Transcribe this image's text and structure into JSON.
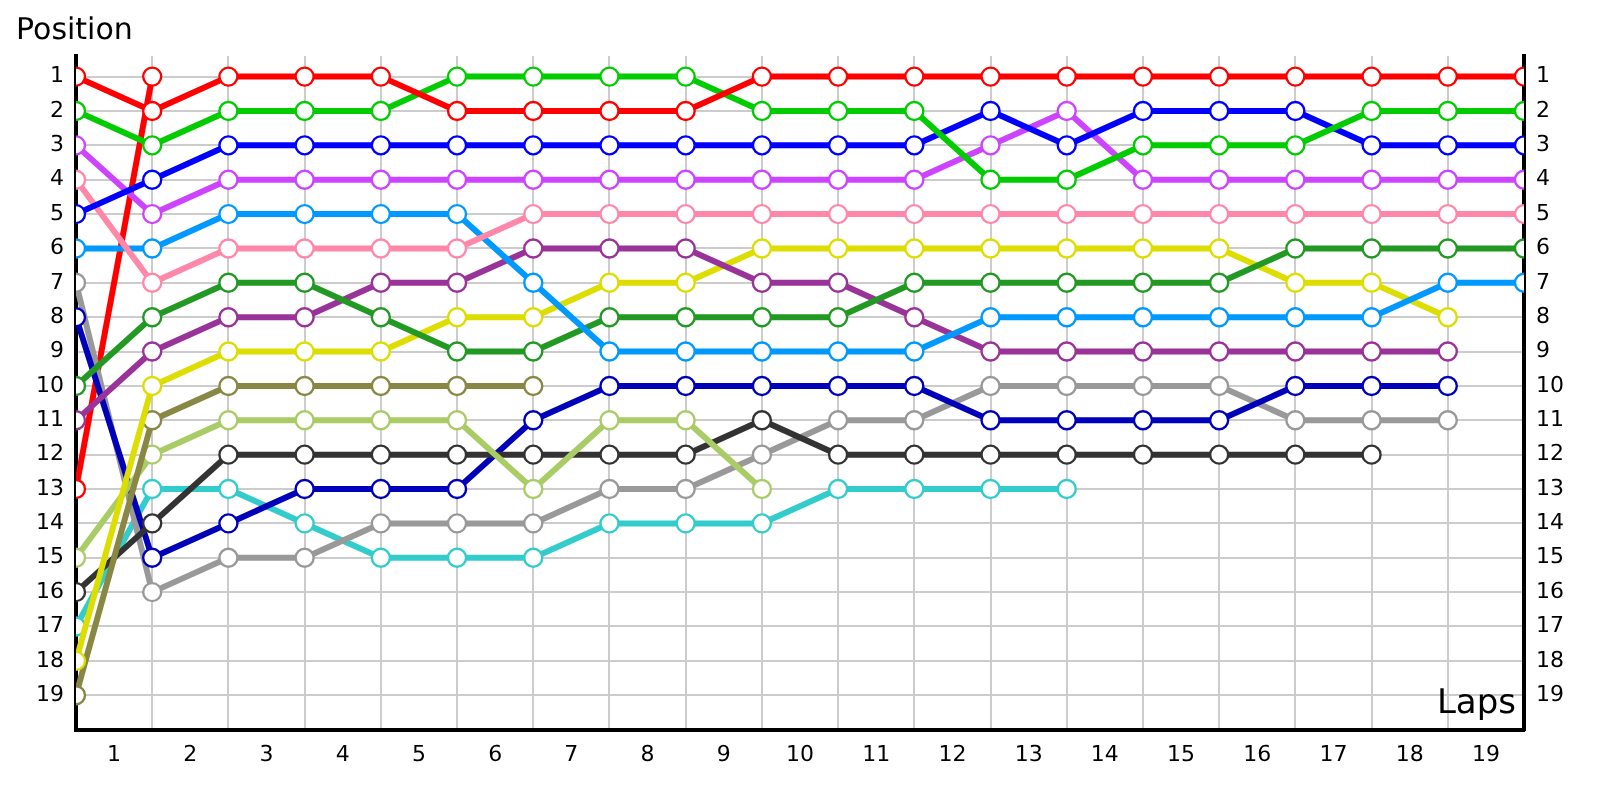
{
  "chart_data": {
    "type": "line",
    "xlabel": "Laps",
    "ylabel": "Position",
    "x": [
      0,
      1,
      2,
      3,
      4,
      5,
      6,
      7,
      8,
      9,
      10,
      11,
      12,
      13,
      14,
      15,
      16,
      17,
      18,
      19
    ],
    "xlim": [
      0,
      19
    ],
    "xticks": [
      {
        "value": 0.5,
        "label": "1"
      },
      {
        "value": 1,
        "label": null
      },
      {
        "value": 1.5,
        "label": "2"
      },
      {
        "value": 2,
        "label": null
      },
      {
        "value": 2.5,
        "label": "3"
      },
      {
        "value": 3,
        "label": null
      },
      {
        "value": 3.5,
        "label": "4"
      },
      {
        "value": 4,
        "label": null
      },
      {
        "value": 4.5,
        "label": "5"
      },
      {
        "value": 5,
        "label": null
      },
      {
        "value": 5.5,
        "label": "6"
      },
      {
        "value": 6,
        "label": null
      },
      {
        "value": 6.5,
        "label": "7"
      },
      {
        "value": 7,
        "label": null
      },
      {
        "value": 7.5,
        "label": "8"
      },
      {
        "value": 8,
        "label": null
      },
      {
        "value": 8.5,
        "label": "9"
      },
      {
        "value": 9,
        "label": null
      },
      {
        "value": 9.5,
        "label": "10"
      },
      {
        "value": 10,
        "label": null
      },
      {
        "value": 10.5,
        "label": "11"
      },
      {
        "value": 11,
        "label": null
      },
      {
        "value": 11.5,
        "label": "12"
      },
      {
        "value": 12,
        "label": null
      },
      {
        "value": 12.5,
        "label": "13"
      },
      {
        "value": 13,
        "label": null
      },
      {
        "value": 13.5,
        "label": "14"
      },
      {
        "value": 14,
        "label": null
      },
      {
        "value": 14.5,
        "label": "15"
      },
      {
        "value": 15,
        "label": null
      },
      {
        "value": 15.5,
        "label": "16"
      },
      {
        "value": 16,
        "label": null
      },
      {
        "value": 16.5,
        "label": "17"
      },
      {
        "value": 17,
        "label": null
      },
      {
        "value": 17.5,
        "label": "18"
      },
      {
        "value": 18,
        "label": null
      },
      {
        "value": 18.5,
        "label": "19"
      }
    ],
    "ylim": [
      20,
      0.4
    ],
    "yticks": [
      1,
      2,
      3,
      4,
      5,
      6,
      7,
      8,
      9,
      10,
      11,
      12,
      13,
      14,
      15,
      16,
      17,
      18,
      19
    ],
    "y2lim": [
      20,
      0.4
    ],
    "y2ticks": [
      1,
      2,
      3,
      4,
      5,
      6,
      7,
      8,
      9,
      10,
      11,
      12,
      13,
      14,
      15,
      16,
      17,
      18,
      19
    ],
    "grid": true,
    "legend": false,
    "marker": "circle",
    "line_style": "solid",
    "series": [
      {
        "color": "#ff0000",
        "values": [
          1,
          2,
          1,
          1,
          1,
          2,
          2,
          2,
          2,
          1,
          1,
          1,
          1,
          1,
          1,
          1,
          1,
          1,
          1,
          1
        ]
      },
      {
        "color": "#00cc00",
        "values": [
          2,
          3,
          2,
          2,
          2,
          1,
          1,
          1,
          1,
          2,
          2,
          2,
          4,
          4,
          3,
          3,
          3,
          2,
          2,
          2
        ]
      },
      {
        "color": "#0000ff",
        "values": [
          5,
          4,
          3,
          3,
          3,
          3,
          3,
          3,
          3,
          3,
          3,
          3,
          2,
          3,
          2,
          2,
          2,
          3,
          3,
          3
        ]
      },
      {
        "color": "#cc44ff",
        "values": [
          3,
          5,
          4,
          4,
          4,
          4,
          4,
          4,
          4,
          4,
          4,
          4,
          3,
          2,
          4,
          4,
          4,
          4,
          4,
          4
        ]
      },
      {
        "color": "#ff88aa",
        "values": [
          4,
          7,
          6,
          6,
          6,
          6,
          5,
          5,
          5,
          5,
          5,
          5,
          5,
          5,
          5,
          5,
          5,
          5,
          5,
          5
        ]
      },
      {
        "color": "#0099ff",
        "values": [
          6,
          6,
          5,
          5,
          5,
          5,
          7,
          9,
          9,
          9,
          9,
          9,
          8,
          8,
          8,
          8,
          8,
          8,
          7,
          7
        ]
      },
      {
        "color": "#229922",
        "values": [
          10,
          8,
          7,
          7,
          8,
          9,
          9,
          8,
          8,
          8,
          8,
          7,
          7,
          7,
          7,
          7,
          6,
          6,
          6,
          6
        ]
      },
      {
        "color": "#993399",
        "values": [
          11,
          9,
          8,
          8,
          7,
          7,
          6,
          6,
          6,
          7,
          7,
          8,
          9,
          9,
          9,
          9,
          9,
          9,
          9,
          null
        ]
      },
      {
        "color": "#dddd00",
        "values": [
          18,
          10,
          9,
          9,
          9,
          8,
          8,
          7,
          7,
          6,
          6,
          6,
          6,
          6,
          6,
          6,
          7,
          7,
          8,
          null
        ]
      },
      {
        "color": "#888844",
        "values": [
          19,
          11,
          10,
          10,
          10,
          10,
          10,
          null,
          null,
          null,
          null,
          null,
          null,
          null,
          null,
          null,
          null,
          null,
          null,
          null
        ]
      },
      {
        "color": "#aacc66",
        "values": [
          15,
          12,
          11,
          11,
          11,
          11,
          13,
          11,
          11,
          13,
          null,
          null,
          null,
          null,
          null,
          null,
          null,
          null,
          null,
          null
        ]
      },
      {
        "color": "#333333",
        "values": [
          16,
          14,
          12,
          12,
          12,
          12,
          12,
          12,
          12,
          11,
          12,
          12,
          12,
          12,
          12,
          12,
          12,
          12,
          null,
          null
        ]
      },
      {
        "color": "#0000bb",
        "values": [
          8,
          15,
          14,
          13,
          13,
          13,
          11,
          10,
          10,
          10,
          10,
          10,
          11,
          11,
          11,
          11,
          10,
          10,
          10,
          null
        ]
      },
      {
        "color": "#999999",
        "values": [
          7,
          16,
          15,
          15,
          14,
          14,
          14,
          13,
          13,
          12,
          11,
          11,
          10,
          10,
          10,
          10,
          11,
          11,
          11,
          null
        ]
      },
      {
        "color": "#33cccc",
        "values": [
          17,
          13,
          13,
          14,
          15,
          15,
          15,
          14,
          14,
          14,
          13,
          13,
          13,
          13,
          null,
          null,
          null,
          null,
          null,
          null
        ]
      },
      {
        "color": "#ff0000",
        "values": [
          13,
          1,
          null,
          null,
          null,
          null,
          null,
          null,
          null,
          null,
          null,
          null,
          null,
          null,
          null,
          null,
          null,
          null,
          null,
          null
        ]
      }
    ]
  }
}
